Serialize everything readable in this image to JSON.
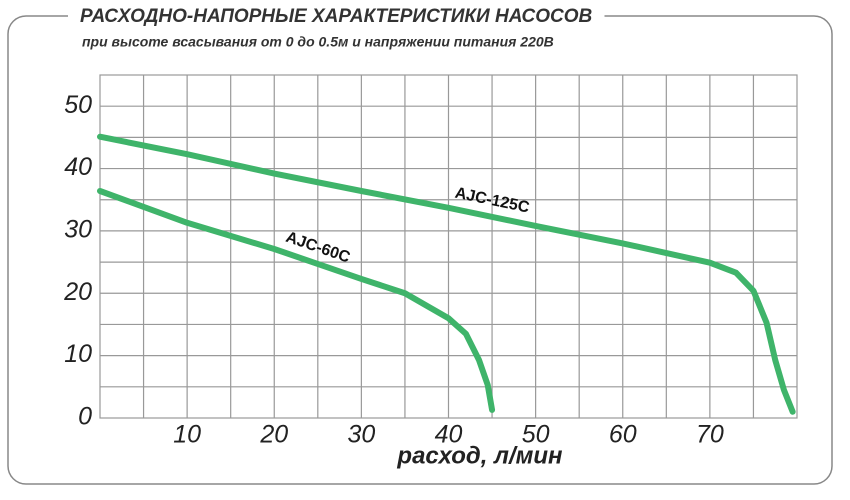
{
  "chart_data": {
    "type": "line",
    "title": "РАСХОДНО-НАПОРНЫЕ ХАРАКТЕРИСТИКИ НАСОСОВ",
    "subtitle": "при высоте всасывания от 0 до 0.5м и напряжении питания 220В",
    "x_label": "расход, л/мин",
    "xlim": [
      0,
      80
    ],
    "xticks": [
      10,
      20,
      30,
      40,
      50,
      60,
      70
    ],
    "xgrid": [
      5,
      10,
      15,
      20,
      25,
      30,
      35,
      40,
      45,
      50,
      55,
      60,
      65,
      70,
      75
    ],
    "ylim": [
      0,
      55
    ],
    "yticks": [
      0,
      10,
      20,
      30,
      40,
      50
    ],
    "ygrid": [
      5,
      10,
      15,
      20,
      25,
      30,
      35,
      40,
      45,
      50
    ],
    "grid": true,
    "series": [
      {
        "name": "AJC-60C",
        "color": "#3fb46a",
        "x": [
          0,
          10,
          20,
          30,
          35,
          40,
          42,
          43.5,
          44.5,
          45
        ],
        "values": [
          36.4,
          31.3,
          27.1,
          22.3,
          20,
          16,
          13.5,
          9.3,
          5.3,
          1.3
        ]
      },
      {
        "name": "AJC-125C",
        "color": "#3fb46a",
        "x": [
          0,
          10,
          20,
          30,
          40,
          50,
          60,
          70,
          73,
          75,
          76.5,
          77.5,
          78.5,
          79.5
        ],
        "values": [
          45.1,
          42.3,
          39.2,
          36.4,
          33.7,
          30.8,
          28,
          24.9,
          23.3,
          20.4,
          15.3,
          9.3,
          4.5,
          1
        ]
      }
    ]
  }
}
